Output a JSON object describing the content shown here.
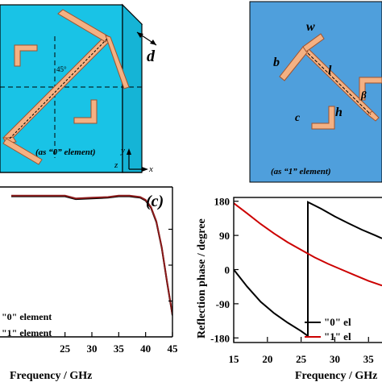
{
  "panel_a": {
    "caption": "(as “0” element)",
    "dim_d": "d",
    "angle": "45°",
    "axis_x": "x",
    "axis_y": "y",
    "axis_z": "z",
    "colors": {
      "substrate": "#19c3e6",
      "element": "#f4b183",
      "outline": "#000000"
    }
  },
  "panel_b": {
    "caption": "(as “1” element)",
    "labels": {
      "w": "w",
      "b": "b",
      "l": "l",
      "h": "h",
      "c": "c",
      "beta": "β"
    },
    "colors": {
      "background": "#4f9fdc",
      "element": "#f4b183"
    }
  },
  "chart_data": [
    {
      "type": "line",
      "panel_label": "(c)",
      "xlabel": "Frequency / GHz",
      "ylabel": "",
      "xlim": [
        15,
        45
      ],
      "ylim": [
        0,
        1.0
      ],
      "xticks": [
        "25",
        "30",
        "35",
        "40",
        "45"
      ],
      "grid": false,
      "legend": [
        "\"0\" element",
        "\"1\" element"
      ],
      "series": [
        {
          "name": "\"0\" element",
          "color": "#000000",
          "x": [
            15,
            20,
            25,
            27,
            30,
            33,
            35,
            37,
            38,
            39,
            40,
            41,
            42,
            43,
            44,
            45
          ],
          "y": [
            0.98,
            0.98,
            0.98,
            0.96,
            0.965,
            0.97,
            0.98,
            0.98,
            0.975,
            0.97,
            0.95,
            0.9,
            0.8,
            0.62,
            0.38,
            0.15
          ]
        },
        {
          "name": "\"1\" element",
          "color": "#8b1a1a",
          "x": [
            15,
            20,
            25,
            27,
            30,
            33,
            35,
            37,
            38,
            39,
            40,
            41,
            42,
            43,
            44,
            45
          ],
          "y": [
            0.985,
            0.985,
            0.985,
            0.965,
            0.97,
            0.975,
            0.985,
            0.985,
            0.98,
            0.975,
            0.955,
            0.905,
            0.805,
            0.625,
            0.385,
            0.155
          ]
        }
      ]
    },
    {
      "type": "line",
      "xlabel": "Frequency / GHz",
      "ylabel": "Reflection phase / degree",
      "xlim": [
        15,
        37
      ],
      "ylim": [
        -190,
        190
      ],
      "xticks": [
        "15",
        "20",
        "25",
        "30",
        "35"
      ],
      "yticks": [
        "180",
        "90",
        "0",
        "-90",
        "-180"
      ],
      "legend": [
        "\"0\" el",
        "\"1\" el"
      ],
      "series": [
        {
          "name": "\"0\" element",
          "color": "#000000",
          "x": [
            15,
            17,
            19,
            21,
            23,
            25,
            26,
            26,
            28,
            30,
            32,
            34,
            36,
            37
          ],
          "y": [
            0,
            -45,
            -85,
            -115,
            -140,
            -162,
            -175,
            178,
            160,
            140,
            122,
            105,
            90,
            82
          ]
        },
        {
          "name": "\"1\" element",
          "color": "#cc0000",
          "x": [
            15,
            17,
            19,
            21,
            23,
            25,
            27,
            29,
            31,
            33,
            35,
            37
          ],
          "y": [
            175,
            148,
            120,
            95,
            72,
            52,
            32,
            15,
            0,
            -15,
            -30,
            -42
          ]
        }
      ]
    }
  ]
}
